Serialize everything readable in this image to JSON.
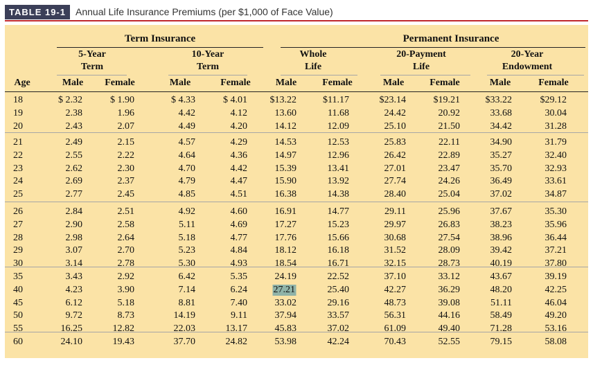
{
  "title": {
    "badge": "TABLE 19-1",
    "caption": "Annual Life Insurance Premiums (per $1,000 of Face Value)"
  },
  "groups": {
    "term": "Term Insurance",
    "permanent": "Permanent Insurance"
  },
  "subgroups": [
    {
      "line1": "5-Year",
      "line2": "Term"
    },
    {
      "line1": "10-Year",
      "line2": "Term"
    },
    {
      "line1": "Whole",
      "line2": "Life"
    },
    {
      "line1": "20-Payment",
      "line2": "Life"
    },
    {
      "line1": "20-Year",
      "line2": "Endowment"
    }
  ],
  "columns": [
    "Age",
    "Male",
    "Female",
    "Male",
    "Female",
    "Male",
    "Female",
    "Male",
    "Female",
    "Male",
    "Female"
  ],
  "highlighted_value": "27.21",
  "row_groups": [
    [
      [
        "18",
        "$ 2.32",
        "$ 1.90",
        "$ 4.33",
        "$ 4.01",
        "$13.22",
        "$11.17",
        "$23.14",
        "$19.21",
        "$33.22",
        "$29.12"
      ],
      [
        "19",
        "2.38",
        "1.96",
        "4.42",
        "4.12",
        "13.60",
        "11.68",
        "24.42",
        "20.92",
        "33.68",
        "30.04"
      ],
      [
        "20",
        "2.43",
        "2.07",
        "4.49",
        "4.20",
        "14.12",
        "12.09",
        "25.10",
        "21.50",
        "34.42",
        "31.28"
      ]
    ],
    [
      [
        "21",
        "2.49",
        "2.15",
        "4.57",
        "4.29",
        "14.53",
        "12.53",
        "25.83",
        "22.11",
        "34.90",
        "31.79"
      ],
      [
        "22",
        "2.55",
        "2.22",
        "4.64",
        "4.36",
        "14.97",
        "12.96",
        "26.42",
        "22.89",
        "35.27",
        "32.40"
      ],
      [
        "23",
        "2.62",
        "2.30",
        "4.70",
        "4.42",
        "15.39",
        "13.41",
        "27.01",
        "23.47",
        "35.70",
        "32.93"
      ],
      [
        "24",
        "2.69",
        "2.37",
        "4.79",
        "4.47",
        "15.90",
        "13.92",
        "27.74",
        "24.26",
        "36.49",
        "33.61"
      ],
      [
        "25",
        "2.77",
        "2.45",
        "4.85",
        "4.51",
        "16.38",
        "14.38",
        "28.40",
        "25.04",
        "37.02",
        "34.87"
      ]
    ],
    [
      [
        "26",
        "2.84",
        "2.51",
        "4.92",
        "4.60",
        "16.91",
        "14.77",
        "29.11",
        "25.96",
        "37.67",
        "35.30"
      ],
      [
        "27",
        "2.90",
        "2.58",
        "5.11",
        "4.69",
        "17.27",
        "15.23",
        "29.97",
        "26.83",
        "38.23",
        "35.96"
      ],
      [
        "28",
        "2.98",
        "2.64",
        "5.18",
        "4.77",
        "17.76",
        "15.66",
        "30.68",
        "27.54",
        "38.96",
        "36.44"
      ],
      [
        "29",
        "3.07",
        "2.70",
        "5.23",
        "4.84",
        "18.12",
        "16.18",
        "31.52",
        "28.09",
        "39.42",
        "37.21"
      ],
      [
        "30",
        "3.14",
        "2.78",
        "5.30",
        "4.93",
        "18.54",
        "16.71",
        "32.15",
        "28.73",
        "40.19",
        "37.80"
      ]
    ],
    [
      [
        "35",
        "3.43",
        "2.92",
        "6.42",
        "5.35",
        "24.19",
        "22.52",
        "37.10",
        "33.12",
        "43.67",
        "39.19"
      ],
      [
        "40",
        "4.23",
        "3.90",
        "7.14",
        "6.24",
        "27.21",
        "25.40",
        "42.27",
        "36.29",
        "48.20",
        "42.25"
      ],
      [
        "45",
        "6.12",
        "5.18",
        "8.81",
        "7.40",
        "33.02",
        "29.16",
        "48.73",
        "39.08",
        "51.11",
        "46.04"
      ],
      [
        "50",
        "9.72",
        "8.73",
        "14.19",
        "9.11",
        "37.94",
        "33.57",
        "56.31",
        "44.16",
        "58.49",
        "49.20"
      ],
      [
        "55",
        "16.25",
        "12.82",
        "22.03",
        "13.17",
        "45.83",
        "37.02",
        "61.09",
        "49.40",
        "71.28",
        "53.16"
      ]
    ],
    [
      [
        "60",
        "24.10",
        "19.43",
        "37.70",
        "24.82",
        "53.98",
        "42.24",
        "70.43",
        "52.55",
        "79.15",
        "58.08"
      ]
    ]
  ]
}
